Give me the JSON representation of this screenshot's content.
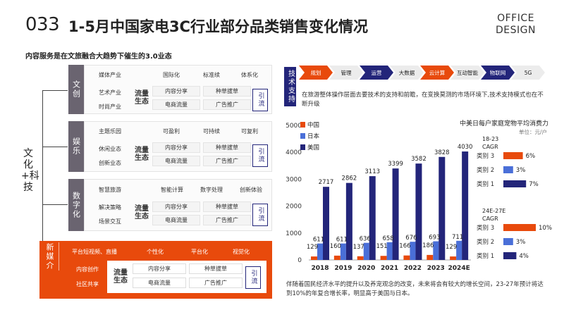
{
  "header": {
    "page_number": "033",
    "title": "1-5月中国家电3C行业部分品类销售变化情况",
    "brand_line1": "OFFICE",
    "brand_line2": "DESIGN"
  },
  "subtitle": "内容服务是在文旅融合大趋势下催生的3.0业态",
  "main_label": "文化+科技",
  "sections": [
    {
      "tab": "文创",
      "items": [
        "媒体产业",
        "艺术产业",
        "时尚产业"
      ],
      "features": [
        "国际化",
        "标准续",
        "体系化"
      ],
      "flow": "流量生态",
      "pills": [
        "内容分享",
        "种草拔草",
        "电商流量",
        "广告推广"
      ],
      "yin": "引流"
    },
    {
      "tab": "娱乐",
      "items": [
        "主题乐园",
        "休闲业态",
        "创新业态"
      ],
      "features": [
        "可盈利",
        "可持续",
        "可复利"
      ],
      "flow": "流量生态",
      "pills": [
        "内容分享",
        "种草拔草",
        "电商流量",
        "广告推广"
      ],
      "yin": "引流"
    },
    {
      "tab": "数字化",
      "items": [
        "智慧旅游",
        "解决策略",
        "场景交互"
      ],
      "features": [
        "智能计算",
        "数字处理",
        "创新体验"
      ],
      "flow": "流量生态",
      "pills": [
        "内容分享",
        "种草拔草",
        "电商流量",
        "广告推广"
      ],
      "yin": "引流"
    }
  ],
  "new_media": {
    "tab": "新媒介",
    "top_items": [
      "平台短视频、直播",
      "个性化",
      "平台化",
      "视觉化"
    ],
    "items": [
      "内容创作",
      "社区共享"
    ],
    "flow": "流量生态",
    "pills": [
      "内容分享",
      "种草拔草",
      "电商流量",
      "广告推广"
    ],
    "yin": "引流"
  },
  "tech": {
    "label": "技术支持",
    "steps": [
      "规划",
      "管理",
      "运营",
      "大数据",
      "云计算",
      "互动智能",
      "物联网",
      "5G"
    ],
    "step_colors": [
      "#e84a0c",
      "#ececec",
      "#23257a",
      "#ececec",
      "#e84a0c",
      "#ececec",
      "#23257a",
      "#ececec"
    ],
    "step_text_colors": [
      "#ffffff",
      "#222222",
      "#ffffff",
      "#222222",
      "#ffffff",
      "#222222",
      "#ffffff",
      "#222222"
    ],
    "description": "在旅游整体操作层面去要技术的支持和前瞻，在变换莫测的市场环境下,技术支持模式也在不断升级"
  },
  "chart_data": [
    {
      "type": "bar",
      "title": "中美日每户家庭宠物平均消费力",
      "subtitle": "单位：元/户",
      "categories": [
        "2018",
        "2019",
        "2020",
        "2021",
        "2022",
        "2023",
        "2024E"
      ],
      "series": [
        {
          "name": "中国",
          "color": "#e84a0c",
          "values": [
            129,
            160,
            137,
            151,
            166,
            186,
            129
          ]
        },
        {
          "name": "日本",
          "color": "#4a6fd8",
          "values": [
            611,
            611,
            636,
            658,
            676,
            693,
            711
          ]
        },
        {
          "name": "美国",
          "color": "#23257a",
          "values": [
            2717,
            2862,
            3113,
            3399,
            3582,
            3828,
            4030
          ]
        }
      ],
      "ylim": [
        0,
        5000
      ],
      "yticks": [
        0,
        1000,
        2000,
        3000,
        4000,
        5000
      ],
      "legend": "top-left",
      "grid": false
    },
    {
      "type": "bar",
      "orientation": "horizontal",
      "title": "18-23 CAGR",
      "categories": [
        "类别 3",
        "类别 2",
        "类别 1"
      ],
      "series": [
        {
          "name": "",
          "values": [
            6,
            3,
            7
          ],
          "colors": [
            "#e84a0c",
            "#4a6fd8",
            "#23257a"
          ]
        }
      ],
      "labels": [
        "6%",
        "3%",
        "7%"
      ]
    },
    {
      "type": "bar",
      "orientation": "horizontal",
      "title": "24E-27E CAGR",
      "categories": [
        "类别 3",
        "类别 2",
        "类别 1"
      ],
      "series": [
        {
          "name": "",
          "values": [
            10,
            3,
            4
          ],
          "colors": [
            "#e84a0c",
            "#4a6fd8",
            "#23257a"
          ]
        }
      ],
      "labels": [
        "10%",
        "3%",
        "4%"
      ]
    }
  ],
  "bottom_description": "伴随着国民经济水平的提升以及养宠观念的改变，未来将会有较大的增长空间，23-27年预计将达到10%的年复合增长率，明显高于美国与日本。"
}
